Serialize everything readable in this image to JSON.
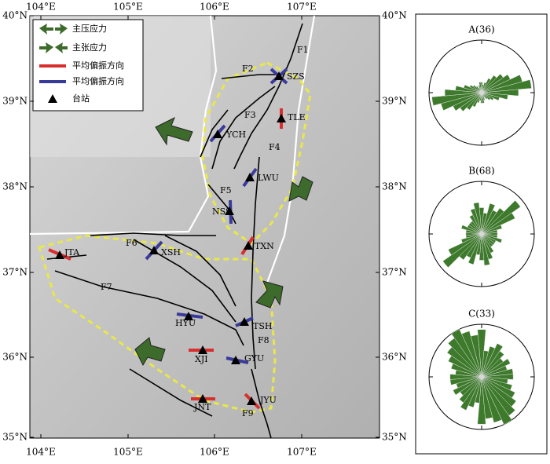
{
  "map": {
    "lon_labels": [
      "104°E",
      "105°E",
      "106°E",
      "107°E"
    ],
    "lat_labels": [
      "40°N",
      "39°N",
      "38°N",
      "37°N",
      "36°N",
      "35°N"
    ],
    "legend": [
      "主压应力",
      "主张应力",
      "平均偏振方向",
      "平均偏振方向",
      "台站"
    ],
    "stations": [
      "SZS",
      "TLE",
      "YCH",
      "LWU",
      "NSS",
      "TXN",
      "JTA",
      "XSH",
      "HYU",
      "TSH",
      "XJI",
      "GYU",
      "JYU",
      "JNT"
    ],
    "faults": [
      "F1",
      "F2",
      "F3",
      "F4",
      "F5",
      "F6",
      "F7",
      "F8",
      "F9"
    ]
  },
  "roses": [
    {
      "title": "A(36)",
      "petals": [
        0.2,
        0.15,
        0.2,
        0.3,
        0.4,
        0.5,
        0.6,
        0.8,
        0.95,
        0.7,
        0.5,
        0.35,
        0.25,
        0.2,
        0.15,
        0.1,
        0.15,
        0.2
      ]
    },
    {
      "title": "B(68)",
      "petals": [
        0.5,
        0.4,
        0.6,
        0.5,
        0.6,
        0.9,
        0.7,
        0.4,
        0.3,
        0.3,
        0.3,
        0.4,
        0.3,
        0.3,
        0.3,
        0.4,
        0.5,
        0.6
      ]
    },
    {
      "title": "C(33)",
      "petals": [
        0.9,
        0.5,
        0.6,
        0.7,
        0.6,
        0.5,
        0.6,
        0.5,
        0.6,
        0.6,
        0.5,
        0.6,
        0.7,
        0.8,
        0.9,
        1.0,
        0.9,
        0.8
      ]
    }
  ]
}
